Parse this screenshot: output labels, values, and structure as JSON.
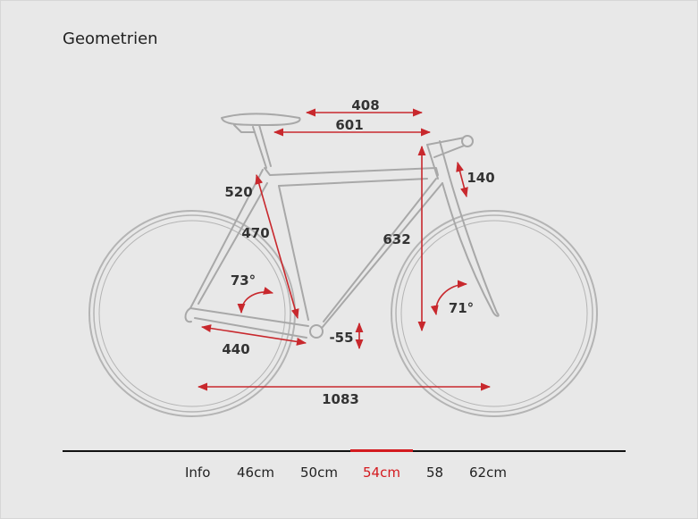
{
  "title": "Geometrien",
  "measurements": {
    "top_tube_reach": "408",
    "top_tube_length": "601",
    "head_tube": "140",
    "seat_tube_c_t": "520",
    "seat_tube_c_c": "470",
    "stack": "632",
    "seat_angle": "73°",
    "head_angle": "71°",
    "bb_drop": "-55",
    "chainstay": "440",
    "wheelbase": "1083"
  },
  "tabs": [
    {
      "label": "Info",
      "active": false
    },
    {
      "label": "46cm",
      "active": false
    },
    {
      "label": "50cm",
      "active": false
    },
    {
      "label": "54cm",
      "active": true
    },
    {
      "label": "58",
      "active": false
    },
    {
      "label": "62cm",
      "active": false
    }
  ],
  "colors": {
    "accent": "#d41a1f",
    "frame_line": "#a8a8a8",
    "background": "#e8e8e8"
  }
}
